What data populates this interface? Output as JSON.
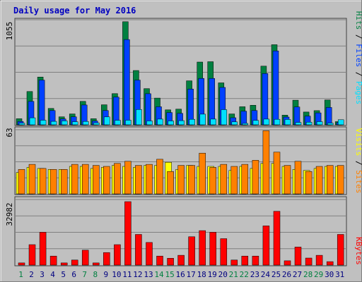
{
  "chart_data": [
    {
      "type": "bar",
      "title": "Daily usage for May 2016",
      "categories": [
        "1",
        "2",
        "3",
        "4",
        "5",
        "6",
        "7",
        "8",
        "9",
        "10",
        "11",
        "12",
        "13",
        "14",
        "15",
        "16",
        "17",
        "18",
        "19",
        "20",
        "21",
        "22",
        "23",
        "24",
        "25",
        "26",
        "27",
        "28",
        "29",
        "30",
        "31"
      ],
      "ylim": [
        0,
        1055
      ],
      "ymax_label": "1055",
      "series": [
        {
          "name": "Hits",
          "color": "#008040",
          "values": [
            61,
            334,
            479,
            164,
            80,
            109,
            235,
            61,
            201,
            313,
            1035,
            545,
            363,
            268,
            150,
            157,
            442,
            630,
            634,
            421,
            109,
            181,
            196,
            589,
            804,
            97,
            247,
            128,
            142,
            249,
            32
          ]
        },
        {
          "name": "Files",
          "color": "#0040ff",
          "values": [
            34,
            235,
            449,
            143,
            59,
            80,
            199,
            38,
            143,
            278,
            856,
            449,
            312,
            181,
            123,
            115,
            359,
            466,
            466,
            375,
            71,
            137,
            143,
            515,
            742,
            78,
            179,
            87,
            120,
            174,
            24
          ]
        },
        {
          "name": "Pages",
          "color": "#00e0ff",
          "values": [
            17,
            70,
            46,
            35,
            40,
            31,
            34,
            20,
            79,
            45,
            46,
            154,
            39,
            57,
            39,
            42,
            55,
            107,
            57,
            152,
            30,
            14,
            44,
            57,
            55,
            54,
            24,
            26,
            32,
            17,
            51
          ]
        }
      ]
    },
    {
      "type": "bar",
      "categories": [
        "1",
        "2",
        "3",
        "4",
        "5",
        "6",
        "7",
        "8",
        "9",
        "10",
        "11",
        "12",
        "13",
        "14",
        "15",
        "16",
        "17",
        "18",
        "19",
        "20",
        "21",
        "22",
        "23",
        "24",
        "25",
        "26",
        "27",
        "28",
        "29",
        "30",
        "31"
      ],
      "ylim": [
        0,
        63
      ],
      "ymax_label": "63",
      "series": [
        {
          "name": "Visits",
          "color": "#ffff00",
          "values": [
            21,
            26,
            25,
            24,
            24,
            27,
            27,
            25,
            26,
            28,
            27,
            26,
            28,
            28,
            31,
            24,
            28,
            27,
            27,
            27,
            23,
            27,
            25,
            30,
            30,
            27,
            24,
            23,
            25,
            27,
            27
          ]
        },
        {
          "name": "Sites",
          "color": "#ff8000",
          "values": [
            24,
            29,
            25,
            24,
            24,
            29,
            29,
            28,
            27,
            30,
            32,
            28,
            29,
            34,
            22,
            28,
            28,
            40,
            26,
            29,
            27,
            29,
            33,
            62,
            41,
            28,
            32,
            22,
            27,
            28,
            28
          ]
        }
      ]
    },
    {
      "type": "bar",
      "categories": [
        "1",
        "2",
        "3",
        "4",
        "5",
        "6",
        "7",
        "8",
        "9",
        "10",
        "11",
        "12",
        "13",
        "14",
        "15",
        "16",
        "17",
        "18",
        "19",
        "20",
        "21",
        "22",
        "23",
        "24",
        "25",
        "26",
        "27",
        "28",
        "29",
        "30",
        "31"
      ],
      "ylim": [
        0,
        32982
      ],
      "ymax_label": "32982",
      "series": [
        {
          "name": "KBytes",
          "color": "#ff0000",
          "values": [
            1106,
            10272,
            16544,
            4541,
            1106,
            2567,
            7506,
            1106,
            6322,
            10272,
            31929,
            15438,
            11377,
            4541,
            3455,
            4936,
            14255,
            17337,
            16544,
            13282,
            2567,
            4541,
            4541,
            19705,
            27060,
            2172,
            9087,
            3554,
            4936,
            1738,
            15438
          ]
        }
      ]
    }
  ],
  "x_label_colors": {
    "weekday": "#000080",
    "weekend": "#008040"
  },
  "weekend_days": [
    "1",
    "7",
    "8",
    "14",
    "15",
    "21",
    "22",
    "28",
    "29"
  ],
  "legend_text": {
    "pages": "Pages",
    "files": "Files",
    "hits": "Hits",
    "sites": "Sites",
    "visits": "Visits",
    "kbytes": "KBytes",
    "sep": " / "
  }
}
